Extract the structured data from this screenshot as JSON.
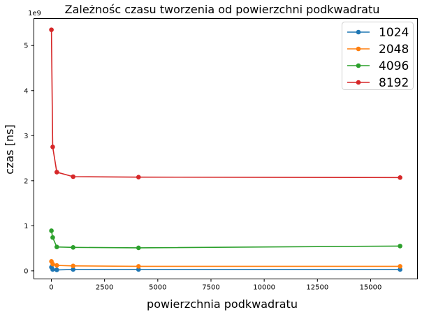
{
  "chart_data": {
    "type": "line",
    "title": "Zależnośc czasu tworzenia od powierzchni podkwadratu",
    "xlabel": "powierzchnia podkwadratu",
    "ylabel": "czas [ns]",
    "y_multiplier_label": "1e9",
    "xlim": [
      -820,
      17200
    ],
    "ylim": [
      -0.18,
      5.6
    ],
    "x_ticks": [
      0,
      2500,
      5000,
      7500,
      10000,
      12500,
      15000
    ],
    "y_ticks": [
      0,
      1,
      2,
      3,
      4,
      5
    ],
    "grid": false,
    "legend_position": "top-right",
    "x": [
      4,
      64,
      256,
      1024,
      4096,
      16384
    ],
    "series": [
      {
        "name": "1024",
        "color": "#1f77b4",
        "values": [
          0.08,
          0.03,
          0.02,
          0.03,
          0.03,
          0.03
        ]
      },
      {
        "name": "2048",
        "color": "#ff7f0e",
        "values": [
          0.21,
          0.15,
          0.12,
          0.11,
          0.1,
          0.1
        ]
      },
      {
        "name": "4096",
        "color": "#2ca02c",
        "values": [
          0.89,
          0.74,
          0.53,
          0.52,
          0.51,
          0.55
        ]
      },
      {
        "name": "8192",
        "color": "#d62728",
        "values": [
          5.35,
          2.75,
          2.19,
          2.09,
          2.08,
          2.07
        ]
      }
    ]
  }
}
